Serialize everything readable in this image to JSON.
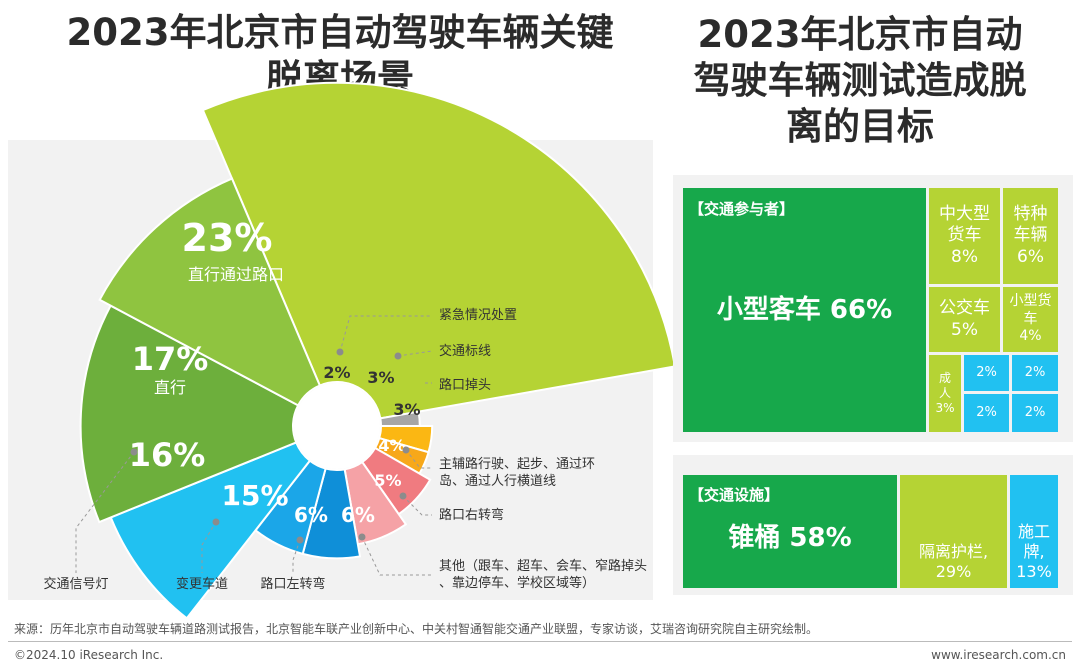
{
  "titles": {
    "left": "2023年北京市自动驾驶车辆关键脱离场景",
    "right": "2023年北京市自动驾驶车辆测试造成脱离的目标"
  },
  "chart_data": [
    {
      "type": "pie",
      "variant": "nightingale-rose",
      "title": "2023年北京市自动驾驶车辆关键脱离场景",
      "slices": [
        {
          "label": "直行通过路口",
          "value": 23,
          "display": "23%",
          "color": "#b5d334"
        },
        {
          "label": "紧急情况处置",
          "value": 2,
          "display": "2%",
          "color": "#a6a6a6"
        },
        {
          "label": "交通标线",
          "value": 3,
          "display": "3%",
          "color": "#fbb713"
        },
        {
          "label": "路口掉头",
          "value": 3,
          "display": "3%",
          "color": "#f7a81a"
        },
        {
          "label": "主辅路行驶、起步、通过环岛、通过人行横道线",
          "value": 4,
          "display": "4%",
          "color": "#f07b80"
        },
        {
          "label": "路口右转弯",
          "value": 5,
          "display": "5%",
          "color": "#f5a2a6"
        },
        {
          "label": "其他（跟车、超车、会车、窄路掉头、靠边停车、学校区域等）",
          "value": 6,
          "display": "6%",
          "color": "#0f8fd8"
        },
        {
          "label": "路口左转弯",
          "value": 6,
          "display": "6%",
          "color": "#1ba6e8"
        },
        {
          "label": "变更车道",
          "value": 15,
          "display": "15%",
          "color": "#21c1f1"
        },
        {
          "label": "交通信号灯",
          "value": 16,
          "display": "16%",
          "color": "#6daf3c"
        },
        {
          "label": "直行",
          "value": 17,
          "display": "17%",
          "color": "#8fc440"
        }
      ]
    },
    {
      "type": "treemap",
      "title": "2023年北京市自动驾驶车辆测试造成脱离的目标",
      "groups": [
        {
          "name": "【交通参与者】",
          "items": [
            {
              "label": "小型客车",
              "value": 66,
              "display": "66%"
            },
            {
              "label": "中大型货车",
              "value": 8,
              "display": "8%"
            },
            {
              "label": "特种车辆",
              "value": 6,
              "display": "6%"
            },
            {
              "label": "公交车",
              "value": 5,
              "display": "5%"
            },
            {
              "label": "小型货车",
              "value": 4,
              "display": "4%"
            },
            {
              "label": "成人",
              "value": 3,
              "display": "3%"
            },
            {
              "label": "",
              "value": 2,
              "display": "2%"
            },
            {
              "label": "",
              "value": 2,
              "display": "2%"
            },
            {
              "label": "",
              "value": 2,
              "display": "2%"
            },
            {
              "label": "",
              "value": 2,
              "display": "2%"
            }
          ]
        },
        {
          "name": "【交通设施】",
          "items": [
            {
              "label": "锥桶",
              "value": 58,
              "display": "58%"
            },
            {
              "label": "隔离护栏,",
              "value": 29,
              "display": "29%"
            },
            {
              "label": "施工牌,",
              "value": 13,
              "display": "13%"
            }
          ]
        }
      ]
    }
  ],
  "footer": {
    "source": "来源：历年北京市自动驾驶车辆道路测试报告，北京智能车联产业创新中心、中关村智通智能交通产业联盟，专家访谈，艾瑞咨询研究院自主研究绘制。",
    "copyright": "©2024.10 iResearch Inc.",
    "website": "www.iresearch.com.cn"
  },
  "colors": {
    "dark_green": "#17a84b",
    "lime": "#b5d334",
    "cyan": "#21c1f1"
  }
}
